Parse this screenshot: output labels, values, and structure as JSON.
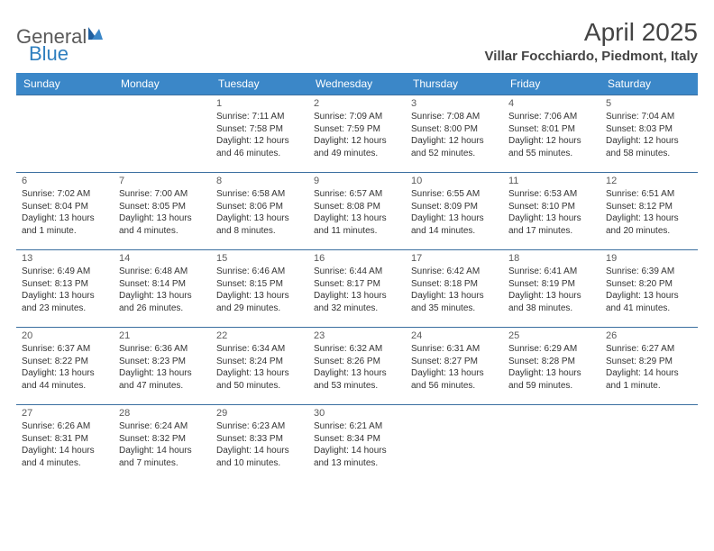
{
  "logo": {
    "text1": "General",
    "text2": "Blue"
  },
  "title": "April 2025",
  "location": "Villar Focchiardo, Piedmont, Italy",
  "colors": {
    "header_bg": "#3b87c8",
    "header_text": "#ffffff",
    "border": "#3b6fa0",
    "logo_gray": "#5a5a5a",
    "logo_blue": "#2f7fbf",
    "body_text": "#333333"
  },
  "day_headers": [
    "Sunday",
    "Monday",
    "Tuesday",
    "Wednesday",
    "Thursday",
    "Friday",
    "Saturday"
  ],
  "weeks": [
    [
      null,
      null,
      {
        "n": "1",
        "sr": "7:11 AM",
        "ss": "7:58 PM",
        "dl": "12 hours and 46 minutes."
      },
      {
        "n": "2",
        "sr": "7:09 AM",
        "ss": "7:59 PM",
        "dl": "12 hours and 49 minutes."
      },
      {
        "n": "3",
        "sr": "7:08 AM",
        "ss": "8:00 PM",
        "dl": "12 hours and 52 minutes."
      },
      {
        "n": "4",
        "sr": "7:06 AM",
        "ss": "8:01 PM",
        "dl": "12 hours and 55 minutes."
      },
      {
        "n": "5",
        "sr": "7:04 AM",
        "ss": "8:03 PM",
        "dl": "12 hours and 58 minutes."
      }
    ],
    [
      {
        "n": "6",
        "sr": "7:02 AM",
        "ss": "8:04 PM",
        "dl": "13 hours and 1 minute."
      },
      {
        "n": "7",
        "sr": "7:00 AM",
        "ss": "8:05 PM",
        "dl": "13 hours and 4 minutes."
      },
      {
        "n": "8",
        "sr": "6:58 AM",
        "ss": "8:06 PM",
        "dl": "13 hours and 8 minutes."
      },
      {
        "n": "9",
        "sr": "6:57 AM",
        "ss": "8:08 PM",
        "dl": "13 hours and 11 minutes."
      },
      {
        "n": "10",
        "sr": "6:55 AM",
        "ss": "8:09 PM",
        "dl": "13 hours and 14 minutes."
      },
      {
        "n": "11",
        "sr": "6:53 AM",
        "ss": "8:10 PM",
        "dl": "13 hours and 17 minutes."
      },
      {
        "n": "12",
        "sr": "6:51 AM",
        "ss": "8:12 PM",
        "dl": "13 hours and 20 minutes."
      }
    ],
    [
      {
        "n": "13",
        "sr": "6:49 AM",
        "ss": "8:13 PM",
        "dl": "13 hours and 23 minutes."
      },
      {
        "n": "14",
        "sr": "6:48 AM",
        "ss": "8:14 PM",
        "dl": "13 hours and 26 minutes."
      },
      {
        "n": "15",
        "sr": "6:46 AM",
        "ss": "8:15 PM",
        "dl": "13 hours and 29 minutes."
      },
      {
        "n": "16",
        "sr": "6:44 AM",
        "ss": "8:17 PM",
        "dl": "13 hours and 32 minutes."
      },
      {
        "n": "17",
        "sr": "6:42 AM",
        "ss": "8:18 PM",
        "dl": "13 hours and 35 minutes."
      },
      {
        "n": "18",
        "sr": "6:41 AM",
        "ss": "8:19 PM",
        "dl": "13 hours and 38 minutes."
      },
      {
        "n": "19",
        "sr": "6:39 AM",
        "ss": "8:20 PM",
        "dl": "13 hours and 41 minutes."
      }
    ],
    [
      {
        "n": "20",
        "sr": "6:37 AM",
        "ss": "8:22 PM",
        "dl": "13 hours and 44 minutes."
      },
      {
        "n": "21",
        "sr": "6:36 AM",
        "ss": "8:23 PM",
        "dl": "13 hours and 47 minutes."
      },
      {
        "n": "22",
        "sr": "6:34 AM",
        "ss": "8:24 PM",
        "dl": "13 hours and 50 minutes."
      },
      {
        "n": "23",
        "sr": "6:32 AM",
        "ss": "8:26 PM",
        "dl": "13 hours and 53 minutes."
      },
      {
        "n": "24",
        "sr": "6:31 AM",
        "ss": "8:27 PM",
        "dl": "13 hours and 56 minutes."
      },
      {
        "n": "25",
        "sr": "6:29 AM",
        "ss": "8:28 PM",
        "dl": "13 hours and 59 minutes."
      },
      {
        "n": "26",
        "sr": "6:27 AM",
        "ss": "8:29 PM",
        "dl": "14 hours and 1 minute."
      }
    ],
    [
      {
        "n": "27",
        "sr": "6:26 AM",
        "ss": "8:31 PM",
        "dl": "14 hours and 4 minutes."
      },
      {
        "n": "28",
        "sr": "6:24 AM",
        "ss": "8:32 PM",
        "dl": "14 hours and 7 minutes."
      },
      {
        "n": "29",
        "sr": "6:23 AM",
        "ss": "8:33 PM",
        "dl": "14 hours and 10 minutes."
      },
      {
        "n": "30",
        "sr": "6:21 AM",
        "ss": "8:34 PM",
        "dl": "14 hours and 13 minutes."
      },
      null,
      null,
      null
    ]
  ],
  "labels": {
    "sunrise": "Sunrise:",
    "sunset": "Sunset:",
    "daylight": "Daylight:"
  }
}
